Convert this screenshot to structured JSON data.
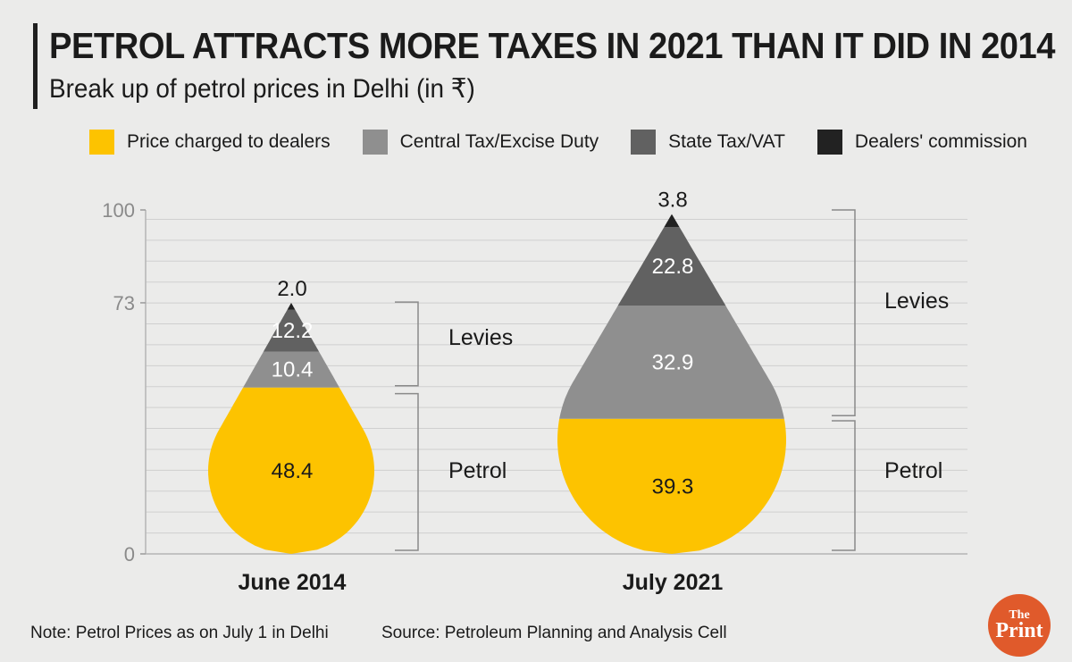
{
  "header": {
    "title": "PETROL ATTRACTS MORE TAXES IN 2021 THAN IT DID IN 2014",
    "subtitle": "Break up of petrol prices in Delhi (in ₹)"
  },
  "footer": {
    "note": "Note: Petrol Prices as on July 1 in Delhi",
    "source": "Source: Petroleum Planning and Analysis Cell",
    "logo_top": "The",
    "logo_bottom": "Print"
  },
  "chart_data": {
    "type": "stacked-bar (drop shaped)",
    "title": "PETROL ATTRACTS MORE TAXES IN 2021 THAN IT DID IN 2014",
    "subtitle": "Break up of petrol prices in Delhi (in ₹)",
    "categories": [
      "June 2014",
      "July 2021"
    ],
    "ylim": [
      0,
      100
    ],
    "yticks": [
      0,
      73,
      100
    ],
    "grid": true,
    "legend_position": "top",
    "series": [
      {
        "name": "Price charged to dealers",
        "color": "#fdc300",
        "values": [
          48.4,
          39.3
        ]
      },
      {
        "name": "Central Tax/Excise Duty",
        "color": "#8f8f8f",
        "values": [
          10.4,
          32.9
        ]
      },
      {
        "name": "State Tax/VAT",
        "color": "#616161",
        "values": [
          12.2,
          22.8
        ]
      },
      {
        "name": "Dealers' commission",
        "color": "#222222",
        "values": [
          2.0,
          3.8
        ]
      }
    ],
    "annotations": {
      "levies_label": "Levies",
      "petrol_label": "Petrol"
    }
  }
}
